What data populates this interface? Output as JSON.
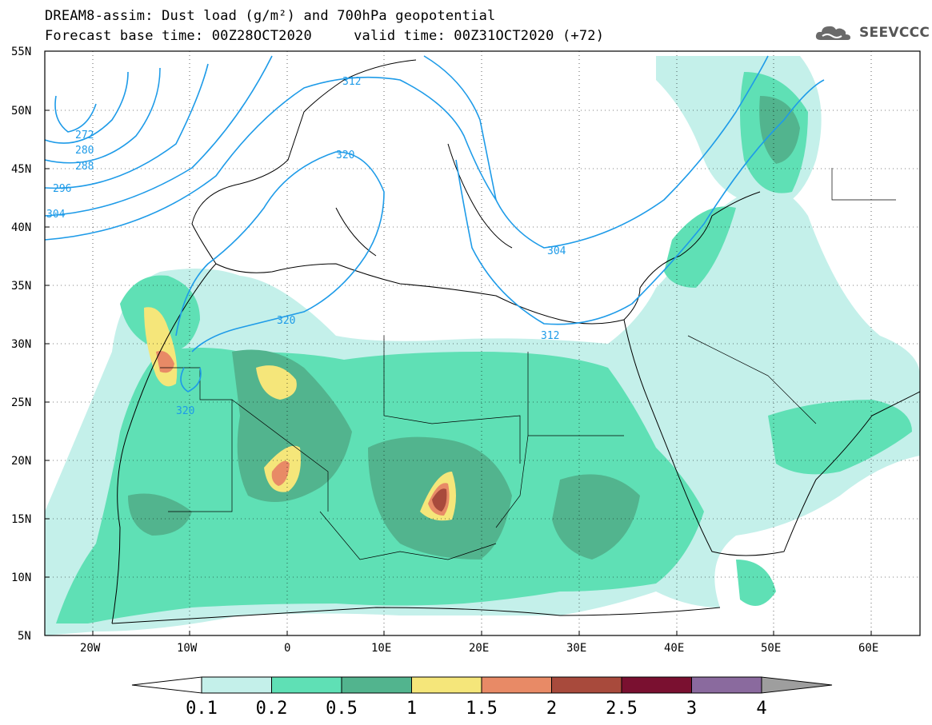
{
  "title": {
    "line1": "DREAM8-assim: Dust load (g/m²) and 700hPa geopotential",
    "line2": "Forecast base time: 00Z28OCT2020     valid time: 00Z31OCT2020 (+72)"
  },
  "logo": {
    "text": "SEEVCCC",
    "icon": "cloud-logo-icon"
  },
  "map": {
    "lat_labels": [
      "55N",
      "50N",
      "45N",
      "40N",
      "35N",
      "30N",
      "25N",
      "20N",
      "15N",
      "10N",
      "5N"
    ],
    "lon_labels": [
      "20W",
      "10W",
      "0",
      "10E",
      "20E",
      "30E",
      "40E",
      "50E",
      "60E"
    ],
    "lat_range": [
      5,
      55
    ],
    "lon_range": [
      -25,
      65
    ],
    "geopotential_labels": [
      "272",
      "280",
      "288",
      "296",
      "304",
      "312",
      "320",
      "320",
      "304",
      "312",
      "320"
    ]
  },
  "colorbar": {
    "labels": [
      "0.1",
      "0.2",
      "0.5",
      "1",
      "1.5",
      "2",
      "2.5",
      "3",
      "4"
    ],
    "colors": [
      "#c4f0ea",
      "#5fe0b5",
      "#52b48e",
      "#f5e67a",
      "#e88a66",
      "#a84a3c",
      "#7a1030",
      "#8a6a9e"
    ],
    "under_color": "#ffffff",
    "over_color": "#9e9e9e"
  },
  "colors": {
    "contour": "#1e9be8",
    "frame": "#000000"
  }
}
